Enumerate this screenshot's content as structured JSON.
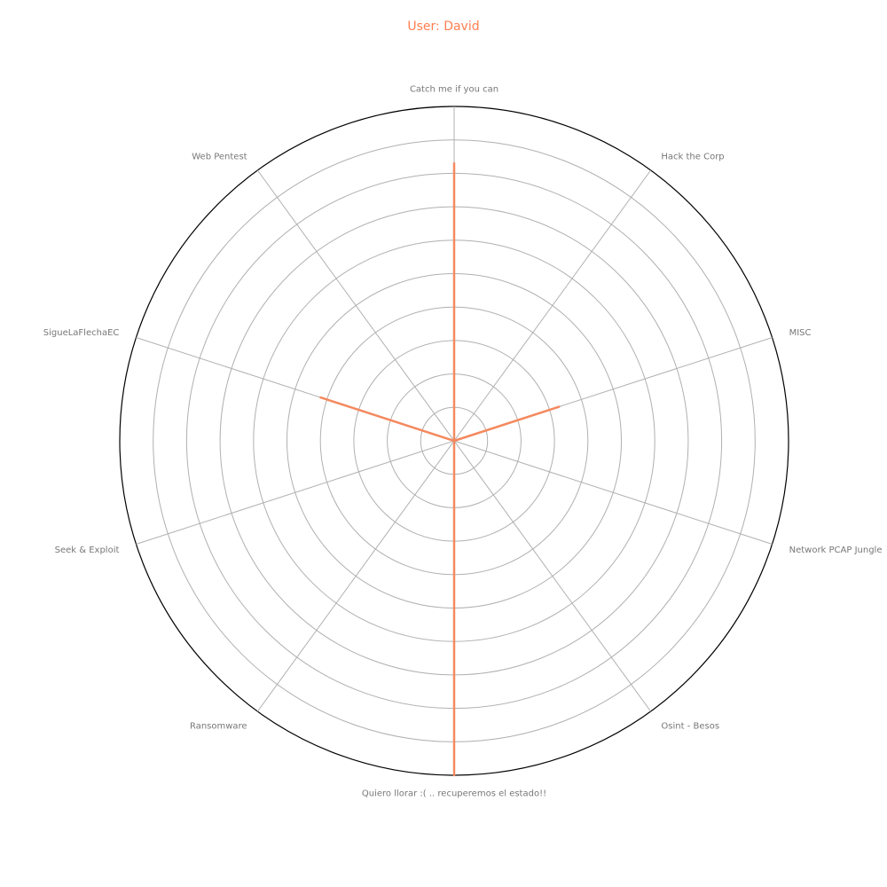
{
  "chart_data": {
    "type": "radar",
    "title": "User: David",
    "categories": [
      "Catch me if you can",
      "Hack the Corp",
      "MISC",
      "Network PCAP Jungle",
      "Osint - Besos",
      "Quiero llorar :( .. recuperemos el estado!!",
      "Ransomware",
      "Seek & Exploit",
      "SigueLaFlechaEC",
      "Web Pentest"
    ],
    "series": [
      {
        "values": [
          0.83,
          0,
          0.33,
          0,
          0,
          1.0,
          0,
          0,
          0.42,
          0
        ]
      }
    ],
    "rlim": [
      0,
      1
    ],
    "grid": true,
    "colors": {
      "series": "#f4895f",
      "title": "#ff7f50",
      "grid": "#b0b0b0",
      "frame": "#000000",
      "label": "#777777"
    }
  }
}
